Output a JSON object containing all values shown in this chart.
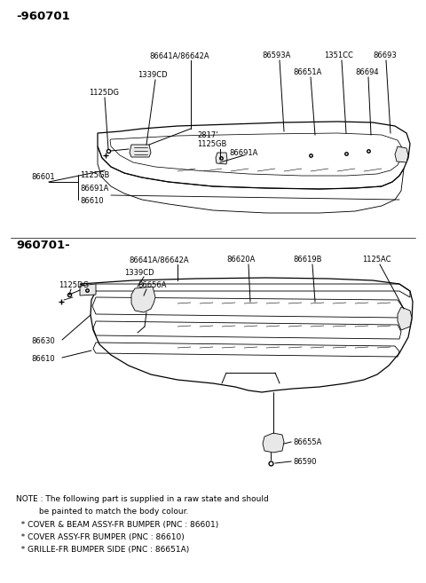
{
  "bg_color": "#ffffff",
  "title1": "-960701",
  "title2": "960701-",
  "note_line1": "NOTE : The following part is supplied in a raw state and should",
  "note_line2": "         be painted to match the body colour.",
  "note_bullet1": "  * COVER & BEAM ASSY-FR BUMPER (PNC : 86601)",
  "note_bullet2": "  * COVER ASSY-FR BUMPER (PNC : 86610)",
  "note_bullet3": "  * GRILLE-FR BUMPER SIDE (PNC : 86651A)",
  "lw": 0.9,
  "fs_label": 6.0,
  "fs_title": 9.5
}
